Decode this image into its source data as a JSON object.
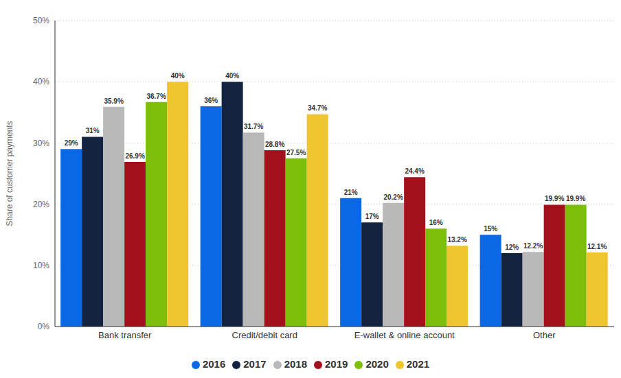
{
  "chart_data": {
    "type": "bar",
    "y_label": "Share of customer payments",
    "categories": [
      "Bank transfer",
      "Credit/debit card",
      "E-wallet & online account",
      "Other"
    ],
    "series": [
      {
        "name": "2016",
        "color": "#0a68e4",
        "values": [
          29,
          36,
          21,
          15
        ],
        "value_labels": [
          "29%",
          "36%",
          "21%",
          "15%"
        ]
      },
      {
        "name": "2017",
        "color": "#13233f",
        "values": [
          31,
          40,
          17,
          12
        ],
        "value_labels": [
          "31%",
          "40%",
          "17%",
          "12%"
        ]
      },
      {
        "name": "2018",
        "color": "#b9b9b9",
        "values": [
          35.9,
          31.7,
          20.2,
          12.2
        ],
        "value_labels": [
          "35.9%",
          "31.7%",
          "20.2%",
          "12.2%"
        ]
      },
      {
        "name": "2019",
        "color": "#a3111c",
        "values": [
          26.9,
          28.8,
          24.4,
          19.9
        ],
        "value_labels": [
          "26.9%",
          "28.8%",
          "24.4%",
          "19.9%"
        ]
      },
      {
        "name": "2020",
        "color": "#7cbe0a",
        "values": [
          36.7,
          27.5,
          16,
          19.9
        ],
        "value_labels": [
          "36.7%",
          "27.5%",
          "16%",
          "19.9%"
        ]
      },
      {
        "name": "2021",
        "color": "#eec42f",
        "values": [
          40,
          34.7,
          13.2,
          12.1
        ],
        "value_labels": [
          "40%",
          "34.7%",
          "13.2%",
          "12.1%"
        ]
      }
    ],
    "ylim": [
      0,
      50
    ],
    "yticks": [
      {
        "value": 0,
        "label": "0%"
      },
      {
        "value": 10,
        "label": "10%"
      },
      {
        "value": 20,
        "label": "20%"
      },
      {
        "value": 30,
        "label": "30%"
      },
      {
        "value": 40,
        "label": "40%"
      },
      {
        "value": 50,
        "label": "50%"
      }
    ],
    "grid": true,
    "legend": "bottom",
    "data_labels": true
  }
}
